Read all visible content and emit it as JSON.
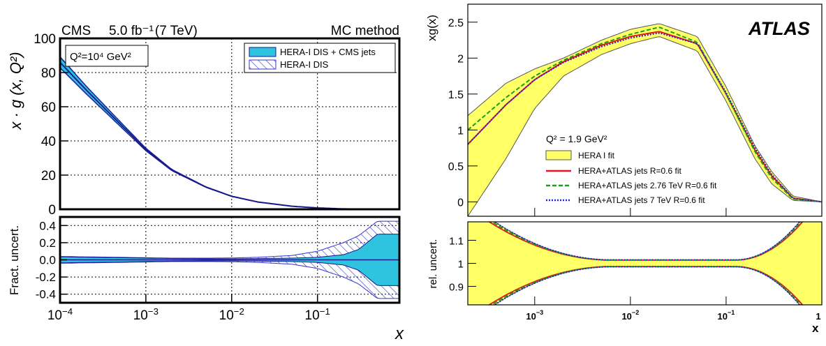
{
  "left_figure": {
    "experiment": "CMS",
    "luminosity": "5.0 fb⁻¹",
    "energy": "(7 TeV)",
    "method": "MC method",
    "q2_label": "Q²=10⁴ GeV²",
    "ylabel_top": "x · g (x, Q²)",
    "ylabel_bottom": "Fract. uncert.",
    "xlabel": "x",
    "legend": [
      {
        "label": "HERA-I DIS + CMS jets",
        "fill": "#2ec4e0",
        "edge": "#1a1a8a"
      },
      {
        "label": "HERA-I DIS",
        "fill": "hatch",
        "edge": "#3333cc"
      }
    ],
    "colors": {
      "cms_band": "#2ec4e0",
      "hera_hatch": "#3333cc",
      "central": "#1a1a8a"
    }
  },
  "right_figure": {
    "logo": "ATLAS",
    "q2_label": "Q² = 1.9 GeV²",
    "ylabel_top": "xg(x)",
    "ylabel_bottom": "rel. uncert.",
    "xlabel": "x",
    "legend": [
      {
        "label": "HERA I fit",
        "style": "band",
        "color": "#ffff66"
      },
      {
        "label": "HERA+ATLAS jets R=0.6 fit",
        "style": "solid",
        "color": "#e8141e"
      },
      {
        "label": "HERA+ATLAS jets 2.76 TeV R=0.6 fit",
        "style": "dashed",
        "color": "#18a018"
      },
      {
        "label": "HERA+ATLAS jets 7 TeV R=0.6 fit",
        "style": "dotted",
        "color": "#2222cc"
      }
    ],
    "colors": {
      "band_fill": "#ffff66",
      "band_edge": "#555555"
    }
  },
  "chart_data": [
    {
      "type": "area",
      "panel": "CMS gluon PDF",
      "xscale": "log",
      "xlim": [
        0.0001,
        0.9
      ],
      "ylim": [
        0,
        100
      ],
      "x_ticks": [
        "10⁻⁴",
        "10⁻³",
        "10⁻²",
        "10⁻¹"
      ],
      "y_ticks": [
        "0",
        "20",
        "40",
        "60",
        "80",
        "100"
      ],
      "grid": true,
      "legend_position": "top-right",
      "x": [
        0.0001,
        0.0002,
        0.0005,
        0.001,
        0.002,
        0.005,
        0.01,
        0.02,
        0.05,
        0.1,
        0.2,
        0.3,
        0.5
      ],
      "series": [
        {
          "name": "HERA-I DIS + CMS jets",
          "values": [
            86,
            70,
            50,
            35,
            23,
            13,
            7.6,
            4.3,
            1.8,
            0.8,
            0.25,
            0.09,
            0.01
          ],
          "rel_uncertainty": [
            0.035,
            0.03,
            0.025,
            0.02,
            0.016,
            0.012,
            0.012,
            0.015,
            0.02,
            0.03,
            0.06,
            0.12,
            0.3
          ]
        },
        {
          "name": "HERA-I DIS",
          "values": [
            86,
            70,
            50,
            35,
            23,
            13,
            7.6,
            4.3,
            1.8,
            0.8,
            0.25,
            0.09,
            0.01
          ],
          "rel_uncertainty": [
            0.04,
            0.035,
            0.03,
            0.025,
            0.02,
            0.02,
            0.022,
            0.03,
            0.05,
            0.1,
            0.2,
            0.28,
            0.45
          ]
        }
      ]
    },
    {
      "type": "line",
      "panel": "CMS fractional uncertainty",
      "xscale": "log",
      "xlim": [
        0.0001,
        0.9
      ],
      "ylim": [
        -0.5,
        0.5
      ],
      "x_ticks": [
        "10⁻⁴",
        "10⁻³",
        "10⁻²",
        "10⁻¹"
      ],
      "y_ticks": [
        "-0.4",
        "-0.2",
        "0.0",
        "0.2",
        "0.4"
      ],
      "grid": true
    },
    {
      "type": "line",
      "panel": "ATLAS gluon PDF",
      "xscale": "log",
      "xlim": [
        0.0002,
        1
      ],
      "ylim": [
        -0.2,
        2.75
      ],
      "x_ticks": [
        "10⁻³",
        "10⁻²",
        "10⁻¹",
        "1"
      ],
      "y_ticks": [
        "0",
        "0.5",
        "1",
        "1.5",
        "2",
        "2.5"
      ],
      "grid": false,
      "legend_position": "bottom-left",
      "x": [
        0.0002,
        0.0005,
        0.001,
        0.002,
        0.005,
        0.01,
        0.02,
        0.05,
        0.1,
        0.2,
        0.3,
        0.5,
        1
      ],
      "series": [
        {
          "name": "HERA I fit",
          "values": [
            0.6,
            1.25,
            1.65,
            1.9,
            2.15,
            2.3,
            2.4,
            2.2,
            1.5,
            0.7,
            0.35,
            0.05,
            0.0
          ],
          "band_upper": [
            1.2,
            1.65,
            1.85,
            2.0,
            2.25,
            2.4,
            2.48,
            2.3,
            1.6,
            0.78,
            0.42,
            0.08,
            0.0
          ],
          "band_lower": [
            -0.2,
            0.6,
            1.3,
            1.75,
            2.05,
            2.2,
            2.3,
            2.1,
            1.4,
            0.6,
            0.25,
            0.02,
            0.0
          ]
        },
        {
          "name": "HERA+ATLAS jets R=0.6 fit",
          "values": [
            0.8,
            1.35,
            1.7,
            1.95,
            2.18,
            2.3,
            2.37,
            2.2,
            1.5,
            0.72,
            0.36,
            0.05,
            0.0
          ]
        },
        {
          "name": "HERA+ATLAS jets 2.76 TeV R=0.6 fit",
          "values": [
            1.0,
            1.45,
            1.75,
            1.97,
            2.2,
            2.33,
            2.43,
            2.22,
            1.5,
            0.7,
            0.33,
            0.04,
            0.0
          ]
        },
        {
          "name": "HERA+ATLAS jets 7 TeV R=0.6 fit",
          "values": [
            0.8,
            1.35,
            1.7,
            1.94,
            2.16,
            2.28,
            2.35,
            2.2,
            1.52,
            0.75,
            0.38,
            0.05,
            0.0
          ]
        }
      ]
    },
    {
      "type": "line",
      "panel": "ATLAS relative uncertainty",
      "xscale": "log",
      "xlim": [
        0.0002,
        1
      ],
      "ylim": [
        0.82,
        1.18
      ],
      "x_ticks": [
        "10⁻³",
        "10⁻²",
        "10⁻¹",
        "1"
      ],
      "y_ticks": [
        "0.9",
        "1",
        "1.1"
      ],
      "grid": false
    }
  ]
}
